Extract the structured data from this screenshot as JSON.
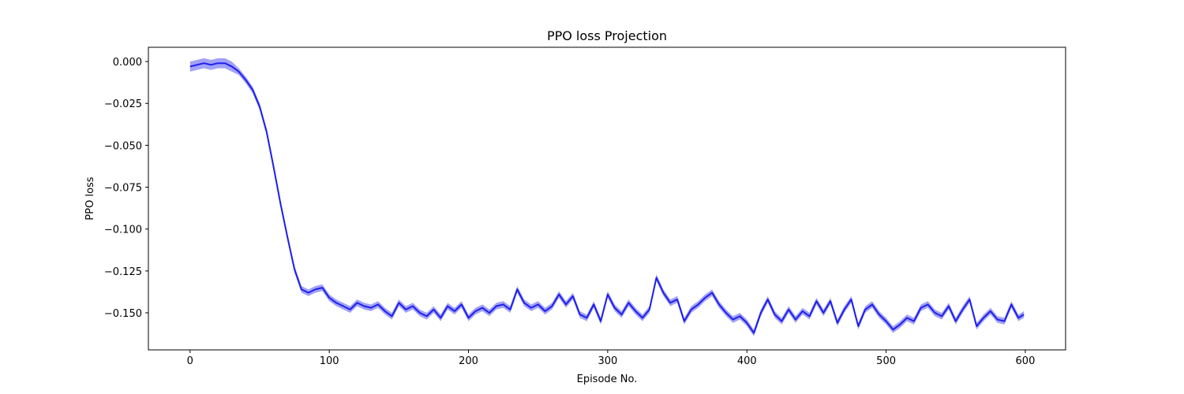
{
  "chart_data": {
    "type": "line",
    "title": "PPO loss Projection",
    "xlabel": "Episode No.",
    "ylabel": "PPO loss",
    "color": "#1f1fee",
    "band_color": "#5555ee",
    "xlim": [
      -29.95,
      628.95
    ],
    "ylim": [
      -0.1721,
      0.0085
    ],
    "xticks": [
      0,
      100,
      200,
      300,
      400,
      500,
      600
    ],
    "yticks": [
      {
        "value": 0,
        "label": "0.000"
      },
      {
        "value": -0.025,
        "label": "−0.025"
      },
      {
        "value": -0.05,
        "label": "−0.050"
      },
      {
        "value": -0.075,
        "label": "−0.075"
      },
      {
        "value": -0.1,
        "label": "−0.100"
      },
      {
        "value": -0.125,
        "label": "−0.125"
      },
      {
        "value": -0.15,
        "label": "−0.150"
      }
    ],
    "x": [
      0,
      5,
      10,
      15,
      20,
      25,
      30,
      35,
      40,
      45,
      50,
      55,
      60,
      65,
      70,
      75,
      80,
      85,
      90,
      95,
      100,
      105,
      110,
      115,
      120,
      125,
      130,
      135,
      140,
      145,
      150,
      155,
      160,
      165,
      170,
      175,
      180,
      185,
      190,
      195,
      200,
      205,
      210,
      215,
      220,
      225,
      230,
      235,
      240,
      245,
      250,
      255,
      260,
      265,
      270,
      275,
      280,
      285,
      290,
      295,
      300,
      305,
      310,
      315,
      320,
      325,
      330,
      335,
      340,
      345,
      350,
      355,
      360,
      365,
      370,
      375,
      380,
      385,
      390,
      395,
      400,
      405,
      410,
      415,
      420,
      425,
      430,
      435,
      440,
      445,
      450,
      455,
      460,
      465,
      470,
      475,
      480,
      485,
      490,
      495,
      500,
      505,
      510,
      515,
      520,
      525,
      530,
      535,
      540,
      545,
      550,
      555,
      560,
      565,
      570,
      575,
      580,
      585,
      590,
      595,
      599
    ],
    "values": [
      -0.003,
      -0.002,
      -0.001,
      -0.002,
      -0.001,
      -0.001,
      -0.003,
      -0.006,
      -0.011,
      -0.017,
      -0.027,
      -0.042,
      -0.063,
      -0.085,
      -0.105,
      -0.124,
      -0.136,
      -0.138,
      -0.136,
      -0.135,
      -0.141,
      -0.144,
      -0.146,
      -0.148,
      -0.144,
      -0.146,
      -0.147,
      -0.145,
      -0.149,
      -0.152,
      -0.144,
      -0.148,
      -0.146,
      -0.15,
      -0.152,
      -0.148,
      -0.153,
      -0.146,
      -0.149,
      -0.145,
      -0.153,
      -0.149,
      -0.147,
      -0.15,
      -0.146,
      -0.145,
      -0.148,
      -0.136,
      -0.144,
      -0.147,
      -0.145,
      -0.149,
      -0.146,
      -0.139,
      -0.145,
      -0.14,
      -0.151,
      -0.153,
      -0.145,
      -0.155,
      -0.139,
      -0.147,
      -0.151,
      -0.144,
      -0.149,
      -0.153,
      -0.148,
      -0.129,
      -0.138,
      -0.144,
      -0.142,
      -0.155,
      -0.148,
      -0.145,
      -0.141,
      -0.138,
      -0.145,
      -0.15,
      -0.154,
      -0.152,
      -0.156,
      -0.162,
      -0.15,
      -0.142,
      -0.151,
      -0.155,
      -0.148,
      -0.154,
      -0.149,
      -0.152,
      -0.143,
      -0.15,
      -0.143,
      -0.156,
      -0.148,
      -0.142,
      -0.158,
      -0.148,
      -0.145,
      -0.151,
      -0.155,
      -0.16,
      -0.157,
      -0.153,
      -0.155,
      -0.147,
      -0.145,
      -0.15,
      -0.152,
      -0.146,
      -0.155,
      -0.148,
      -0.142,
      -0.158,
      -0.153,
      -0.149,
      -0.154,
      -0.155,
      -0.145,
      -0.153,
      -0.151
    ],
    "lower": [
      -0.006,
      -0.005,
      -0.004,
      -0.005,
      -0.004,
      -0.004,
      -0.006,
      -0.008,
      -0.013,
      -0.019,
      -0.029,
      -0.044,
      -0.065,
      -0.087,
      -0.107,
      -0.126,
      -0.138,
      -0.14,
      -0.138,
      -0.137,
      -0.143,
      -0.146,
      -0.148,
      -0.15,
      -0.146,
      -0.148,
      -0.149,
      -0.147,
      -0.151,
      -0.154,
      -0.146,
      -0.15,
      -0.148,
      -0.152,
      -0.154,
      -0.15,
      -0.155,
      -0.148,
      -0.151,
      -0.147,
      -0.155,
      -0.151,
      -0.149,
      -0.152,
      -0.148,
      -0.147,
      -0.15,
      -0.138,
      -0.146,
      -0.149,
      -0.147,
      -0.151,
      -0.148,
      -0.141,
      -0.147,
      -0.142,
      -0.153,
      -0.155,
      -0.147,
      -0.157,
      -0.141,
      -0.149,
      -0.153,
      -0.146,
      -0.151,
      -0.155,
      -0.15,
      -0.131,
      -0.14,
      -0.146,
      -0.144,
      -0.157,
      -0.15,
      -0.147,
      -0.143,
      -0.14,
      -0.147,
      -0.152,
      -0.156,
      -0.154,
      -0.158,
      -0.164,
      -0.152,
      -0.144,
      -0.153,
      -0.157,
      -0.15,
      -0.156,
      -0.151,
      -0.154,
      -0.145,
      -0.152,
      -0.145,
      -0.158,
      -0.15,
      -0.144,
      -0.16,
      -0.15,
      -0.147,
      -0.153,
      -0.157,
      -0.162,
      -0.159,
      -0.155,
      -0.157,
      -0.149,
      -0.147,
      -0.152,
      -0.154,
      -0.148,
      -0.157,
      -0.15,
      -0.144,
      -0.16,
      -0.155,
      -0.151,
      -0.156,
      -0.157,
      -0.147,
      -0.155,
      -0.153
    ],
    "upper": [
      0.0,
      0.001,
      0.002,
      0.001,
      0.002,
      0.002,
      0.0,
      -0.004,
      -0.009,
      -0.015,
      -0.025,
      -0.04,
      -0.061,
      -0.083,
      -0.103,
      -0.122,
      -0.134,
      -0.136,
      -0.134,
      -0.133,
      -0.139,
      -0.142,
      -0.144,
      -0.146,
      -0.142,
      -0.144,
      -0.145,
      -0.143,
      -0.147,
      -0.15,
      -0.142,
      -0.146,
      -0.144,
      -0.148,
      -0.15,
      -0.146,
      -0.151,
      -0.144,
      -0.147,
      -0.143,
      -0.151,
      -0.147,
      -0.145,
      -0.148,
      -0.144,
      -0.143,
      -0.146,
      -0.134,
      -0.142,
      -0.145,
      -0.143,
      -0.147,
      -0.144,
      -0.137,
      -0.143,
      -0.138,
      -0.149,
      -0.151,
      -0.143,
      -0.153,
      -0.137,
      -0.145,
      -0.149,
      -0.142,
      -0.147,
      -0.151,
      -0.146,
      -0.127,
      -0.136,
      -0.142,
      -0.14,
      -0.153,
      -0.146,
      -0.143,
      -0.139,
      -0.136,
      -0.143,
      -0.148,
      -0.152,
      -0.15,
      -0.154,
      -0.16,
      -0.148,
      -0.14,
      -0.149,
      -0.153,
      -0.146,
      -0.152,
      -0.147,
      -0.15,
      -0.141,
      -0.148,
      -0.141,
      -0.154,
      -0.146,
      -0.14,
      -0.156,
      -0.146,
      -0.143,
      -0.149,
      -0.153,
      -0.158,
      -0.155,
      -0.151,
      -0.153,
      -0.145,
      -0.143,
      -0.148,
      -0.15,
      -0.144,
      -0.153,
      -0.146,
      -0.14,
      -0.156,
      -0.151,
      -0.147,
      -0.152,
      -0.153,
      -0.143,
      -0.151,
      -0.149
    ]
  }
}
